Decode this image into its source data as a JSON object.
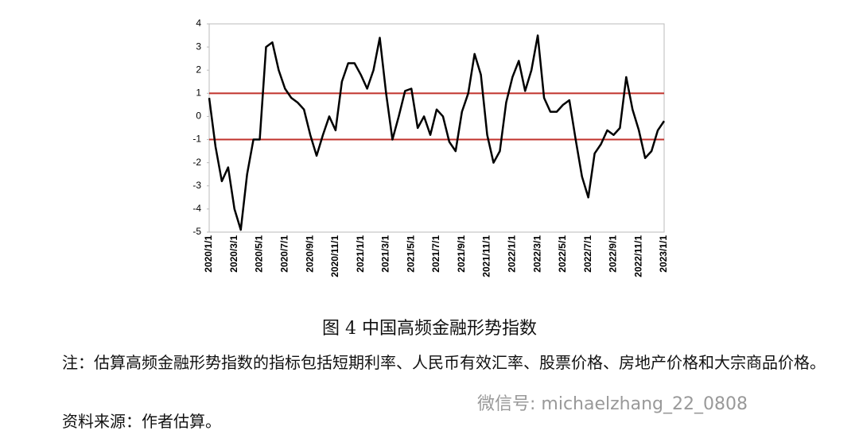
{
  "chart_data": {
    "type": "line",
    "categories": [
      "2020/1/1",
      null,
      null,
      null,
      "2020/3/1",
      null,
      null,
      null,
      "2020/5/1",
      null,
      null,
      null,
      "2020/7/1",
      null,
      null,
      null,
      "2020/9/1",
      null,
      null,
      null,
      "2020/11/1",
      null,
      null,
      null,
      "2021/1/1",
      null,
      null,
      null,
      "2021/3/1",
      null,
      null,
      null,
      "2021/5/1",
      null,
      null,
      null,
      "2021/7/1",
      null,
      null,
      null,
      "2021/9/1",
      null,
      null,
      null,
      "2021/11/1",
      null,
      null,
      null,
      "2022/1/1",
      null,
      null,
      null,
      "2022/3/1",
      null,
      null,
      null,
      "2022/5/1",
      null,
      null,
      null,
      "2022/7/1",
      null,
      null,
      null,
      "2022/9/1",
      null,
      null,
      null,
      "2022/11/1",
      null,
      null,
      null,
      "2023/1/1"
    ],
    "values": [
      0.8,
      -1.3,
      -2.8,
      -2.2,
      -4.0,
      -4.9,
      -2.5,
      -1.0,
      -1.0,
      3.0,
      3.2,
      2.0,
      1.2,
      0.8,
      0.6,
      0.3,
      -0.8,
      -1.7,
      -0.8,
      0.0,
      -0.6,
      1.5,
      2.3,
      2.3,
      1.8,
      1.2,
      2.0,
      3.4,
      1.0,
      -1.0,
      0.0,
      1.1,
      1.2,
      -0.5,
      0.0,
      -0.8,
      0.3,
      0.0,
      -1.1,
      -1.5,
      0.2,
      1.0,
      2.7,
      1.8,
      -0.8,
      -2.0,
      -1.5,
      0.6,
      1.7,
      2.4,
      1.1,
      2.0,
      3.5,
      0.8,
      0.2,
      0.2,
      0.5,
      0.7,
      -1.0,
      -2.6,
      -3.5,
      -1.6,
      -1.2,
      -0.6,
      -0.8,
      -0.5,
      1.7,
      0.3,
      -0.6,
      -1.8,
      -1.5,
      -0.6,
      -0.2
    ],
    "color": "#000000",
    "ylim": [
      -5,
      4
    ],
    "yticks": [
      -5,
      -4,
      -3,
      -2,
      -1,
      0,
      1,
      2,
      3,
      4
    ],
    "reference_lines": [
      {
        "value": 1,
        "color": "#c0322b"
      },
      {
        "value": -1,
        "color": "#c0322b"
      }
    ]
  },
  "document": {
    "caption": "图 4  中国高频金融形势指数",
    "note": "注：估算高频金融形势指数的指标包括短期利率、人民币有效汇率、股票价格、房地产价格和大宗商品价格。",
    "source": "资料来源：作者估算。",
    "watermark": "微信号: michaelzhang_22_0808"
  }
}
